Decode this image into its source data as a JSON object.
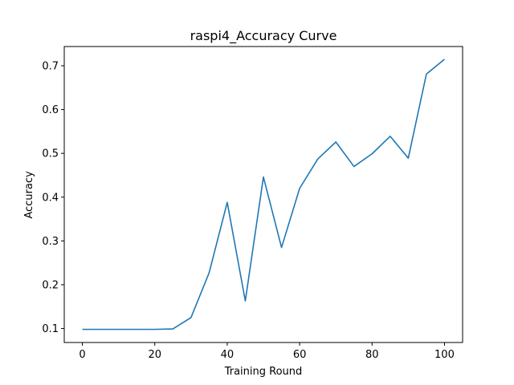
{
  "chart_data": {
    "type": "line",
    "title": "raspi4_Accuracy Curve",
    "xlabel": "Training Round",
    "ylabel": "Accuracy",
    "xlim": [
      -5,
      105
    ],
    "ylim": [
      0.068,
      0.744
    ],
    "xticks": [
      0,
      20,
      40,
      60,
      80,
      100
    ],
    "yticks": [
      0.1,
      0.2,
      0.3,
      0.4,
      0.5,
      0.6,
      0.7
    ],
    "grid": false,
    "line_color": "#1f77b4",
    "series": [
      {
        "x": [
          0,
          5,
          10,
          15,
          20,
          25,
          30,
          35,
          40,
          45,
          50,
          55,
          60,
          65,
          70,
          75,
          80,
          85,
          90,
          95,
          100
        ],
        "values": [
          0.098,
          0.098,
          0.098,
          0.098,
          0.098,
          0.099,
          0.125,
          0.227,
          0.388,
          0.163,
          0.446,
          0.285,
          0.42,
          0.487,
          0.526,
          0.47,
          0.499,
          0.539,
          0.489,
          0.681,
          0.715
        ]
      }
    ]
  }
}
